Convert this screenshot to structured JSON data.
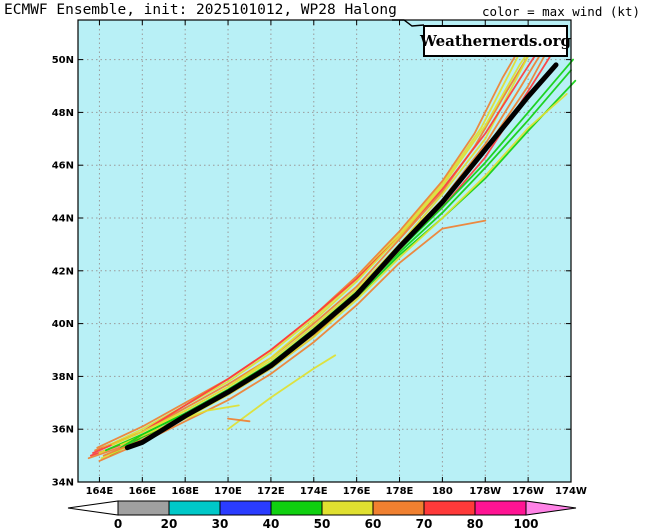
{
  "header": {
    "title": "ECMWF Ensemble, init: 2025101012, WP28 Halong",
    "legend_title": "color = max wind (kt)",
    "logo": "Weathernerds.org"
  },
  "colors": {
    "ocean": "#b8f0f6",
    "grid": "#9a9a9a",
    "mean_track": "#000000"
  },
  "chart_data": {
    "type": "map-tracks",
    "lon_range": [
      163,
      186
    ],
    "lat_range": [
      34,
      51.5
    ],
    "x_ticks": [
      {
        "lon": 164,
        "label": "164E"
      },
      {
        "lon": 166,
        "label": "166E"
      },
      {
        "lon": 168,
        "label": "168E"
      },
      {
        "lon": 170,
        "label": "170E"
      },
      {
        "lon": 172,
        "label": "172E"
      },
      {
        "lon": 174,
        "label": "174E"
      },
      {
        "lon": 176,
        "label": "176E"
      },
      {
        "lon": 178,
        "label": "178E"
      },
      {
        "lon": 180,
        "label": "180"
      },
      {
        "lon": 182,
        "label": "178W"
      },
      {
        "lon": 184,
        "label": "176W"
      },
      {
        "lon": 186,
        "label": "174W"
      }
    ],
    "y_ticks": [
      {
        "lat": 34,
        "label": "34N"
      },
      {
        "lat": 36,
        "label": "36N"
      },
      {
        "lat": 38,
        "label": "38N"
      },
      {
        "lat": 40,
        "label": "40N"
      },
      {
        "lat": 42,
        "label": "42N"
      },
      {
        "lat": 44,
        "label": "44N"
      },
      {
        "lat": 46,
        "label": "46N"
      },
      {
        "lat": 48,
        "label": "48N"
      },
      {
        "lat": 50,
        "label": "50N"
      }
    ],
    "colorbar": {
      "values": [
        0,
        20,
        30,
        40,
        50,
        60,
        70,
        80,
        100
      ],
      "colors": [
        "#a0a0a0",
        "#00c8c8",
        "#2a3cff",
        "#10d010",
        "#e0e030",
        "#f08030",
        "#ff3a3a",
        "#ff1493",
        "#ff82e6"
      ]
    },
    "ensemble_tracks": [
      {
        "color": "#ff3a3a",
        "points": [
          [
            163.6,
            35.0
          ],
          [
            166,
            35.7
          ],
          [
            168,
            36.5
          ],
          [
            170,
            37.3
          ],
          [
            172,
            38.3
          ],
          [
            174,
            39.5
          ],
          [
            176,
            41.1
          ],
          [
            178,
            42.9
          ],
          [
            180,
            44.4
          ],
          [
            182,
            46.3
          ],
          [
            184,
            48.8
          ],
          [
            185.4,
            50.6
          ]
        ]
      },
      {
        "color": "#f08030",
        "points": [
          [
            163.5,
            34.9
          ],
          [
            166,
            35.6
          ],
          [
            168,
            36.6
          ],
          [
            170,
            37.5
          ],
          [
            172,
            38.5
          ],
          [
            174,
            39.8
          ],
          [
            176,
            41.2
          ],
          [
            178,
            43.0
          ],
          [
            180,
            44.7
          ],
          [
            182,
            46.8
          ],
          [
            183.6,
            48.9
          ],
          [
            184.8,
            50.5
          ]
        ]
      },
      {
        "color": "#f08030",
        "points": [
          [
            163.8,
            35.2
          ],
          [
            166,
            35.9
          ],
          [
            168,
            36.8
          ],
          [
            170,
            37.7
          ],
          [
            172,
            38.7
          ],
          [
            174,
            40.0
          ],
          [
            176,
            41.4
          ],
          [
            178,
            43.2
          ],
          [
            180,
            45.0
          ],
          [
            181.5,
            46.7
          ],
          [
            183,
            48.8
          ],
          [
            184.2,
            50.4
          ]
        ]
      },
      {
        "color": "#e0e030",
        "points": [
          [
            164.0,
            35.1
          ],
          [
            166,
            35.8
          ],
          [
            168,
            36.7
          ],
          [
            170,
            37.6
          ],
          [
            172,
            38.6
          ],
          [
            174,
            39.9
          ],
          [
            176,
            41.3
          ],
          [
            178,
            43.0
          ],
          [
            180,
            44.9
          ],
          [
            182,
            47.0
          ],
          [
            183.4,
            49.2
          ],
          [
            184.3,
            50.6
          ]
        ]
      },
      {
        "color": "#e0e030",
        "points": [
          [
            164.2,
            35.3
          ],
          [
            166,
            36.0
          ],
          [
            168,
            36.9
          ],
          [
            170,
            37.8
          ],
          [
            172,
            38.9
          ],
          [
            174,
            40.2
          ],
          [
            176,
            41.7
          ],
          [
            178,
            43.4
          ],
          [
            180,
            45.3
          ],
          [
            181.8,
            47.4
          ],
          [
            183.2,
            49.6
          ],
          [
            184.0,
            50.9
          ]
        ]
      },
      {
        "color": "#10d010",
        "points": [
          [
            164.5,
            35.0
          ],
          [
            166,
            35.7
          ],
          [
            168,
            36.5
          ],
          [
            170,
            37.4
          ],
          [
            172,
            38.4
          ],
          [
            174,
            39.6
          ],
          [
            176,
            41.0
          ],
          [
            178,
            42.6
          ],
          [
            180,
            44.0
          ],
          [
            182,
            45.5
          ],
          [
            184,
            47.3
          ],
          [
            186.2,
            49.2
          ]
        ]
      },
      {
        "color": "#10d010",
        "points": [
          [
            164.3,
            35.2
          ],
          [
            166,
            35.8
          ],
          [
            168,
            36.6
          ],
          [
            170,
            37.5
          ],
          [
            172,
            38.5
          ],
          [
            174,
            39.7
          ],
          [
            176,
            41.1
          ],
          [
            178,
            42.7
          ],
          [
            180,
            44.2
          ],
          [
            182,
            45.9
          ],
          [
            184,
            47.7
          ],
          [
            186.0,
            49.6
          ]
        ]
      },
      {
        "color": "#e0e030",
        "points": [
          [
            164.1,
            34.9
          ],
          [
            166,
            35.6
          ],
          [
            168,
            36.4
          ],
          [
            170,
            37.3
          ],
          [
            172,
            38.3
          ],
          [
            174,
            39.5
          ],
          [
            176,
            40.9
          ],
          [
            178,
            42.5
          ],
          [
            180,
            44.0
          ],
          [
            182,
            45.6
          ],
          [
            184,
            47.4
          ],
          [
            185.8,
            48.7
          ]
        ]
      },
      {
        "color": "#f08030",
        "points": [
          [
            163.9,
            35.3
          ],
          [
            166,
            36.1
          ],
          [
            168,
            37.0
          ],
          [
            170,
            37.9
          ],
          [
            172,
            39.0
          ],
          [
            174,
            40.3
          ],
          [
            176,
            41.8
          ],
          [
            178,
            43.5
          ],
          [
            180,
            45.4
          ],
          [
            181.5,
            47.2
          ],
          [
            182.8,
            49.3
          ],
          [
            183.8,
            50.7
          ]
        ]
      },
      {
        "color": "#f08030",
        "points": [
          [
            164.0,
            34.8
          ],
          [
            166,
            35.5
          ],
          [
            168,
            36.3
          ],
          [
            170,
            37.1
          ],
          [
            172,
            38.1
          ],
          [
            174,
            39.3
          ],
          [
            176,
            40.7
          ],
          [
            178,
            42.3
          ],
          [
            180,
            43.6
          ],
          [
            182,
            43.9
          ]
        ]
      },
      {
        "color": "#e0e030",
        "points": [
          [
            165.0,
            35.4
          ],
          [
            167,
            36.1
          ],
          [
            169,
            36.7
          ],
          [
            170.5,
            36.9
          ]
        ]
      },
      {
        "color": "#e0e030",
        "points": [
          [
            170,
            36.0
          ],
          [
            172,
            37.2
          ],
          [
            174,
            38.3
          ],
          [
            175,
            38.8
          ]
        ]
      },
      {
        "color": "#ff3a3a",
        "points": [
          [
            163.7,
            35.1
          ],
          [
            166,
            35.9
          ],
          [
            168,
            36.9
          ],
          [
            170,
            37.9
          ],
          [
            172,
            39.0
          ],
          [
            174,
            40.3
          ],
          [
            176,
            41.7
          ],
          [
            178,
            43.3
          ],
          [
            180,
            45.1
          ],
          [
            182,
            47.2
          ],
          [
            183.8,
            49.5
          ],
          [
            185,
            51
          ]
        ]
      },
      {
        "color": "#e0e030",
        "points": [
          [
            164.6,
            35.4
          ],
          [
            166,
            35.9
          ],
          [
            168,
            36.7
          ],
          [
            170,
            37.6
          ],
          [
            172,
            38.7
          ],
          [
            174,
            40.1
          ],
          [
            176,
            41.6
          ],
          [
            178,
            43.3
          ],
          [
            180,
            45.2
          ],
          [
            182,
            47.5
          ],
          [
            183.6,
            49.8
          ],
          [
            184.6,
            51
          ]
        ]
      },
      {
        "color": "#10d010",
        "points": [
          [
            165.0,
            35.3
          ],
          [
            166,
            35.8
          ],
          [
            168,
            36.6
          ],
          [
            170,
            37.5
          ],
          [
            172,
            38.5
          ],
          [
            174,
            39.8
          ],
          [
            176,
            41.2
          ],
          [
            178,
            42.8
          ],
          [
            180,
            44.4
          ],
          [
            182,
            46.1
          ],
          [
            184,
            48.0
          ],
          [
            186.1,
            50.0
          ]
        ]
      },
      {
        "color": "#f08030",
        "points": [
          [
            164.2,
            35.0
          ],
          [
            166,
            35.6
          ],
          [
            168,
            36.5
          ],
          [
            170,
            37.4
          ],
          [
            172,
            38.4
          ],
          [
            174,
            39.6
          ],
          [
            176,
            41.0
          ],
          [
            178,
            42.8
          ],
          [
            180,
            44.6
          ],
          [
            182,
            46.6
          ],
          [
            184,
            49.0
          ],
          [
            185.2,
            50.8
          ]
        ]
      },
      {
        "color": "#f08030",
        "points": [
          [
            170,
            36.4
          ],
          [
            171.0,
            36.3
          ]
        ]
      }
    ],
    "mean_track": {
      "color": "#000000",
      "points": [
        [
          165.3,
          35.3
        ],
        [
          166,
          35.5
        ],
        [
          168,
          36.5
        ],
        [
          170,
          37.4
        ],
        [
          172,
          38.4
        ],
        [
          174,
          39.7
        ],
        [
          176,
          41.1
        ],
        [
          178,
          42.9
        ],
        [
          180,
          44.6
        ],
        [
          182,
          46.6
        ],
        [
          184,
          48.6
        ],
        [
          185.3,
          49.8
        ]
      ]
    }
  }
}
